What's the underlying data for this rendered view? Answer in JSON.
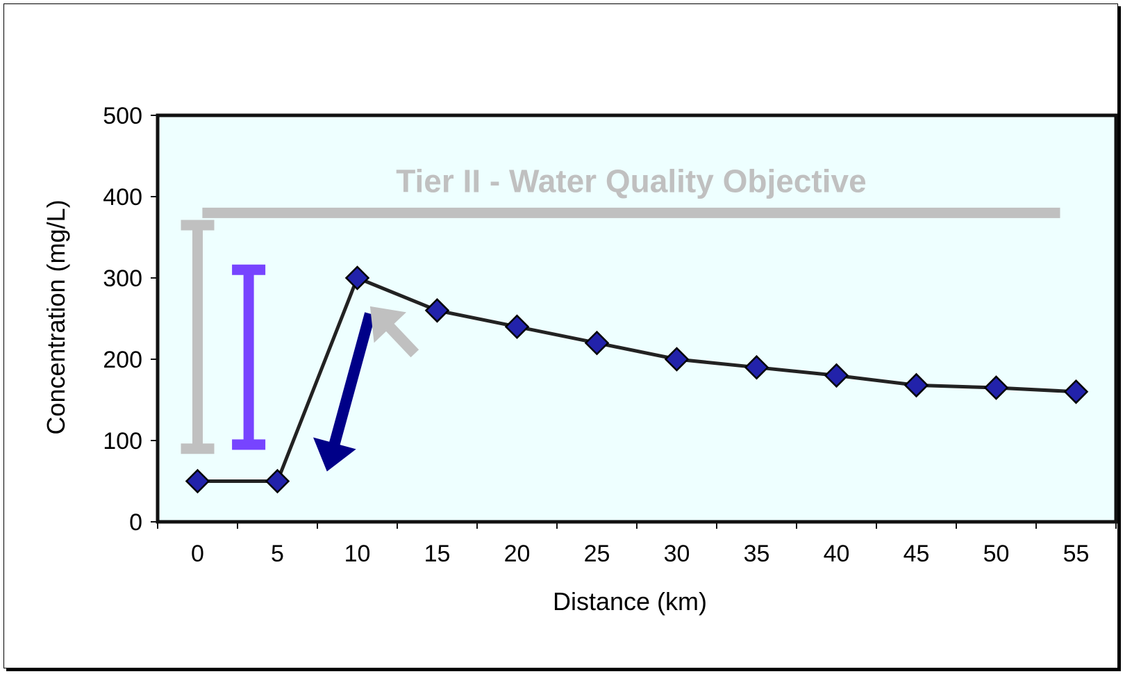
{
  "chart_data": {
    "type": "line",
    "title": "",
    "xlabel": "Distance (km)",
    "ylabel": "Concentration (mg/L)",
    "xlim": [
      0,
      55
    ],
    "ylim": [
      0,
      500
    ],
    "x_ticks": [
      "0",
      "5",
      "10",
      "15",
      "20",
      "25",
      "30",
      "35",
      "40",
      "45",
      "50",
      "55"
    ],
    "y_ticks": [
      "0",
      "100",
      "200",
      "300",
      "400",
      "500"
    ],
    "grid": false,
    "legend": "none",
    "plot_background": "#EEFFFF",
    "series": [
      {
        "x": [
          0,
          5,
          10,
          15,
          20,
          25,
          30,
          35,
          40,
          45,
          50,
          55
        ],
        "y": [
          50,
          50,
          300,
          260,
          240,
          220,
          200,
          190,
          180,
          168,
          165,
          160
        ],
        "line_color": "#222222",
        "marker": "diamond",
        "marker_color": "#2222AA"
      }
    ],
    "annotations": {
      "objective": {
        "label": "Tier II - Water Quality Objective",
        "value": 380,
        "x_range": [
          0.3,
          54
        ],
        "color": "#C0C0C0"
      },
      "ranges": [
        {
          "x": 0,
          "y_range": [
            90,
            365
          ],
          "color": "#C0C0C0"
        },
        {
          "x": 3.2,
          "y_range": [
            95,
            310
          ],
          "color": "#7744FF"
        }
      ],
      "arrows": [
        {
          "from": [
            10.8,
            256
          ],
          "to": [
            8.1,
            62
          ],
          "color": "#000088"
        },
        {
          "from": [
            13.6,
            207
          ],
          "to": [
            10.8,
            265
          ],
          "color": "#C0C0C0"
        }
      ]
    }
  }
}
